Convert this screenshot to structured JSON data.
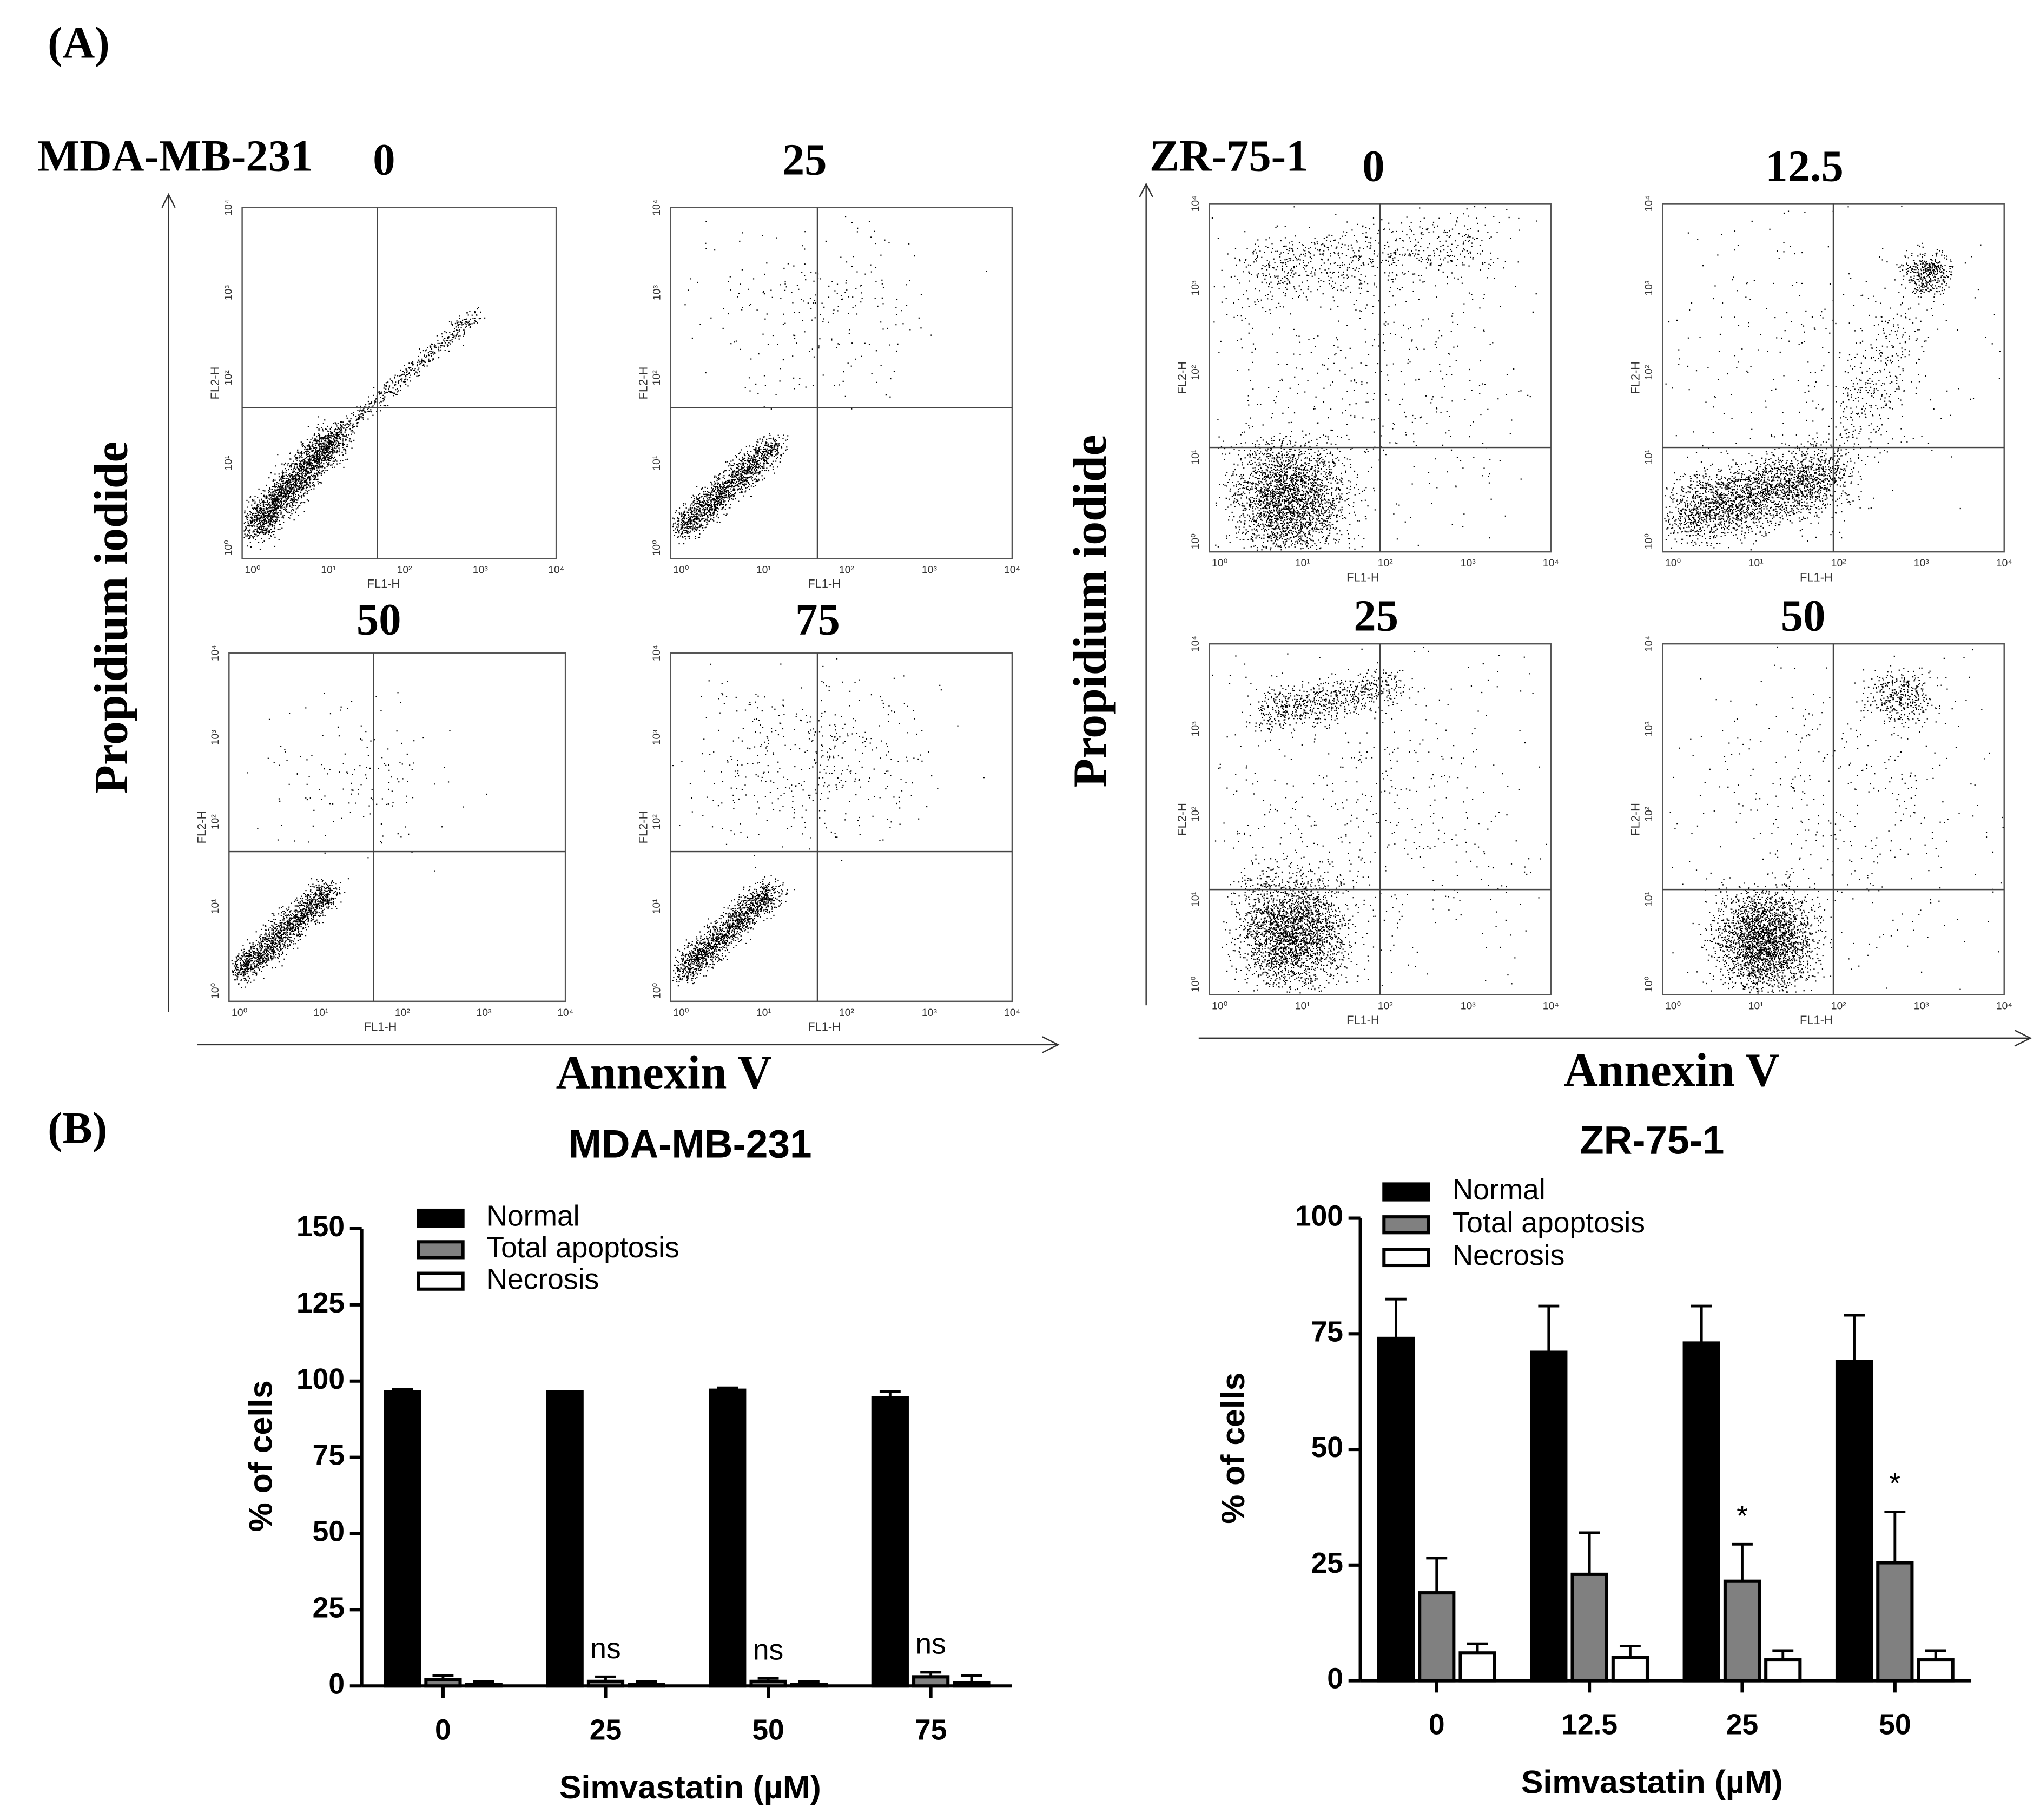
{
  "panel_labels": [
    "(A)",
    "(B)"
  ],
  "flow_panels": [
    {
      "cell_line": "MDA-MB-231",
      "y_label": "Propidium iodide",
      "x_label": "Annexin V",
      "x_axis_label": "FL1-H",
      "y_axis_label": "FL2-H",
      "ticks": [
        "10⁰",
        "10¹",
        "10²",
        "10³",
        "10⁴"
      ],
      "plots": [
        {
          "title": "0"
        },
        {
          "title": "25"
        },
        {
          "title": "50"
        },
        {
          "title": "75"
        }
      ]
    },
    {
      "cell_line": "ZR-75-1",
      "y_label": "Propidium iodide",
      "x_label": "Annexin V",
      "x_axis_label": "FL1-H",
      "y_axis_label": "FL2-H",
      "ticks": [
        "10⁰",
        "10¹",
        "10²",
        "10³",
        "10⁴"
      ],
      "plots": [
        {
          "title": "0"
        },
        {
          "title": "12.5"
        },
        {
          "title": "25"
        },
        {
          "title": "50"
        }
      ]
    }
  ],
  "chart_data": [
    {
      "type": "bar",
      "title": "MDA-MB-231",
      "x_label": "Simvastatin (µM)",
      "y_label": "% of cells",
      "categories": [
        "0",
        "25",
        "50",
        "75"
      ],
      "ylim": [
        0,
        150
      ],
      "yticks": [
        0,
        25,
        50,
        75,
        100,
        125,
        150
      ],
      "series": [
        {
          "name": "Normal",
          "color": "#000000",
          "values": [
            96.5,
            96.5,
            97,
            94.5
          ],
          "errors": [
            0.8,
            0,
            0.8,
            2
          ]
        },
        {
          "name": "Total apoptosis",
          "color": "#808080",
          "values": [
            2,
            1.5,
            1.5,
            3
          ],
          "errors": [
            1.5,
            1.5,
            1,
            1.5
          ]
        },
        {
          "name": "Necrosis",
          "color": "#ffffff",
          "values": [
            0.5,
            0.5,
            0.5,
            1
          ],
          "errors": [
            1,
            1,
            1,
            2.5
          ]
        }
      ],
      "annotations": [
        {
          "text": "ns",
          "category": "25",
          "series": "Total apoptosis"
        },
        {
          "text": "ns",
          "category": "50",
          "series": "Total apoptosis"
        },
        {
          "text": "ns",
          "category": "75",
          "series": "Total apoptosis"
        }
      ]
    },
    {
      "type": "bar",
      "title": "ZR-75-1",
      "x_label": "Simvastatin (µM)",
      "y_label": "% of cells",
      "categories": [
        "0",
        "12.5",
        "25",
        "50"
      ],
      "ylim": [
        0,
        100
      ],
      "yticks": [
        0,
        25,
        50,
        75,
        100
      ],
      "series": [
        {
          "name": "Normal",
          "color": "#000000",
          "values": [
            74,
            71,
            73,
            69
          ],
          "errors": [
            8.5,
            10,
            8,
            10
          ]
        },
        {
          "name": "Total apoptosis",
          "color": "#808080",
          "values": [
            19,
            23,
            21.5,
            25.5
          ],
          "errors": [
            7.5,
            9,
            8,
            11
          ]
        },
        {
          "name": "Necrosis",
          "color": "#ffffff",
          "values": [
            6,
            5,
            4.5,
            4.5
          ],
          "errors": [
            2,
            2.5,
            2,
            2
          ]
        }
      ],
      "annotations": [
        {
          "text": "*",
          "category": "25",
          "series": "Total apoptosis"
        },
        {
          "text": "*",
          "category": "50",
          "series": "Total apoptosis"
        }
      ]
    }
  ]
}
